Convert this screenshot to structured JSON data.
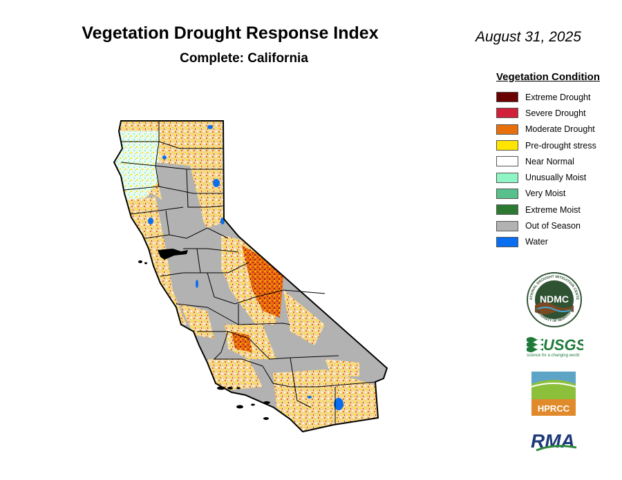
{
  "title": "Vegetation Drought Response Index",
  "subtitle": "Complete: California",
  "date": "August 31, 2025",
  "legend": {
    "title": "Vegetation Condition",
    "items": [
      {
        "label": "Extreme Drought",
        "color": "#6b0000"
      },
      {
        "label": "Severe Drought",
        "color": "#d0203a"
      },
      {
        "label": "Moderate Drought",
        "color": "#e8700c"
      },
      {
        "label": "Pre-drought stress",
        "color": "#ffe500"
      },
      {
        "label": "Near Normal",
        "color": "#ffffff"
      },
      {
        "label": "Unusually Moist",
        "color": "#8ff5c4"
      },
      {
        "label": "Very Moist",
        "color": "#58c08a"
      },
      {
        "label": "Extreme Moist",
        "color": "#2c7a32"
      },
      {
        "label": "Out of Season",
        "color": "#b2b2b2"
      },
      {
        "label": "Water",
        "color": "#0a6ef0"
      }
    ]
  },
  "logos": {
    "ndmc": {
      "text": "NDMC",
      "ring_top": "NATIONAL DROUGHT MITIGATION CENTER",
      "ring_bottom": "UNIVERSITY OF NEBRASKA"
    },
    "usgs": {
      "text": "USGS",
      "tagline": "science for a changing world"
    },
    "hprcc": {
      "text": "HPRCC"
    },
    "rma": {
      "text": "RMA"
    }
  }
}
